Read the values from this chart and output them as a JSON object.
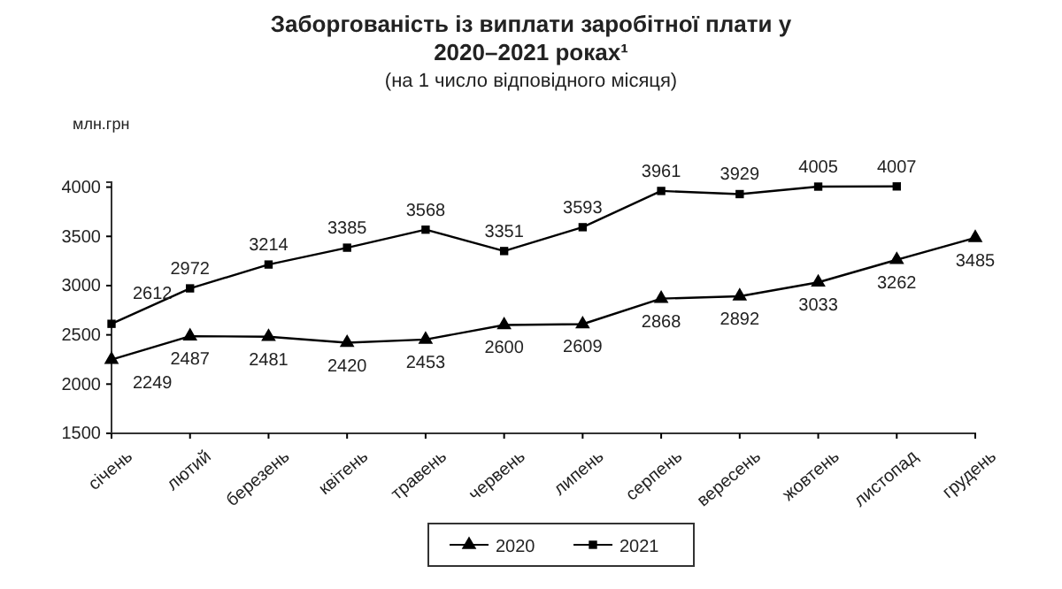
{
  "chart_data": {
    "type": "line",
    "title": "Заборгованість із виплати заробітної плати у 2020–2021 роках¹",
    "subtitle": "(на 1 число відповідного місяця)",
    "ylabel": "млн.грн",
    "categories": [
      "січень",
      "лютий",
      "березень",
      "квітень",
      "травень",
      "червень",
      "липень",
      "серпень",
      "вересень",
      "жовтень",
      "листопад",
      "грудень"
    ],
    "series": [
      {
        "name": "2020",
        "color": "#000000",
        "marker": "triangle",
        "values": [
          2249,
          2487,
          2481,
          2420,
          2453,
          2600,
          2609,
          2868,
          2892,
          3033,
          3262,
          3485
        ]
      },
      {
        "name": "2021",
        "color": "#000000",
        "marker": "square",
        "values": [
          2612,
          2972,
          3214,
          3385,
          3568,
          3351,
          3593,
          3961,
          3929,
          4005,
          4007,
          null
        ]
      }
    ],
    "ylim": [
      1500,
      4050
    ],
    "yticks": [
      1500,
      2000,
      2500,
      3000,
      3500,
      4000
    ],
    "data_labels": true,
    "legend": "bottom",
    "grid": false,
    "line_style": "solid"
  }
}
